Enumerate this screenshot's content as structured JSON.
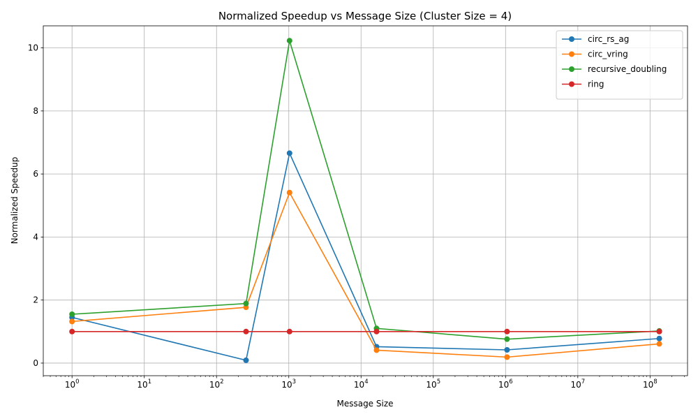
{
  "chart_data": {
    "type": "line",
    "title": "Normalized Speedup vs Message Size (Cluster Size = 4)",
    "xlabel": "Message Size",
    "ylabel": "Normalized Speedup",
    "x_scale": "log",
    "xlim": [
      0.4,
      330000000
    ],
    "ylim": [
      -0.4,
      10.7
    ],
    "x": [
      1,
      256,
      1024,
      16384,
      1048576,
      134217728
    ],
    "x_tick_values": [
      1,
      10,
      100,
      1000,
      10000,
      100000,
      1000000,
      10000000,
      100000000
    ],
    "x_tick_labels": [
      {
        "base": "10",
        "exp": "0"
      },
      {
        "base": "10",
        "exp": "1"
      },
      {
        "base": "10",
        "exp": "2"
      },
      {
        "base": "10",
        "exp": "3"
      },
      {
        "base": "10",
        "exp": "4"
      },
      {
        "base": "10",
        "exp": "5"
      },
      {
        "base": "10",
        "exp": "6"
      },
      {
        "base": "10",
        "exp": "7"
      },
      {
        "base": "10",
        "exp": "8"
      }
    ],
    "y_ticks": [
      0,
      2,
      4,
      6,
      8,
      10
    ],
    "y_tick_labels": [
      "0",
      "2",
      "4",
      "6",
      "8",
      "10"
    ],
    "grid": true,
    "legend_position": "top-right",
    "series": [
      {
        "name": "circ_rs_ag",
        "color": "#1f77b4",
        "values": [
          1.45,
          0.09,
          6.66,
          0.52,
          0.42,
          0.78
        ]
      },
      {
        "name": "circ_vring",
        "color": "#ff7f0e",
        "values": [
          1.32,
          1.77,
          5.41,
          0.41,
          0.19,
          0.61
        ]
      },
      {
        "name": "recursive_doubling",
        "color": "#2ca02c",
        "values": [
          1.55,
          1.89,
          10.23,
          1.1,
          0.76,
          1.02
        ]
      },
      {
        "name": "ring",
        "color": "#d62728",
        "values": [
          1.0,
          1.0,
          1.0,
          1.0,
          1.0,
          1.0
        ]
      }
    ]
  }
}
